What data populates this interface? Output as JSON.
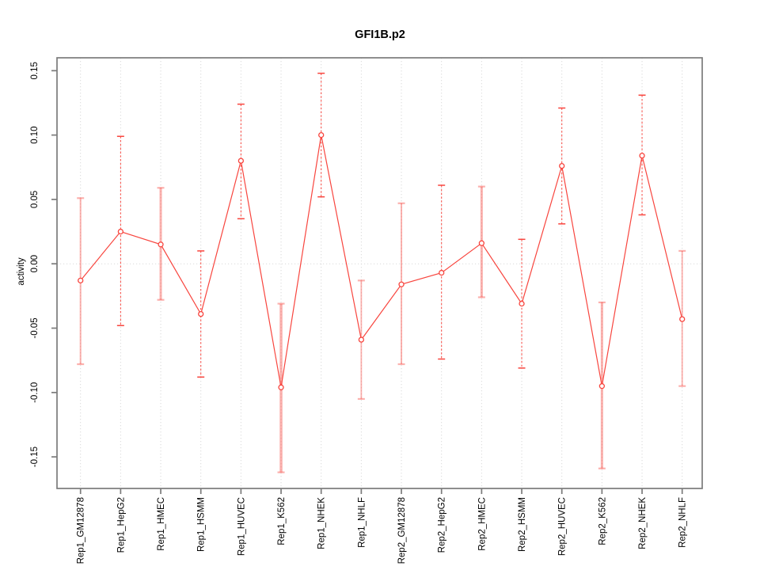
{
  "chart_data": {
    "type": "line",
    "title": "GFI1B.p2",
    "ylabel": "activity",
    "xlabel": "",
    "legend": "none",
    "grid": "vertical dotted gridline at every category; dotted horizontal line at 0",
    "categories": [
      "Rep1_GM12878",
      "Rep1_HepG2",
      "Rep1_HMEC",
      "Rep1_HSMM",
      "Rep1_HUVEC",
      "Rep1_K562",
      "Rep1_NHEK",
      "Rep1_NHLF",
      "Rep2_GM12878",
      "Rep2_HepG2",
      "Rep2_HMEC",
      "Rep2_HSMM",
      "Rep2_HUVEC",
      "Rep2_K562",
      "Rep2_NHEK",
      "Rep2_NHLF"
    ],
    "series": [
      {
        "name": "activity",
        "values": [
          -0.013,
          0.025,
          0.015,
          -0.039,
          0.08,
          -0.096,
          0.1,
          -0.059,
          -0.016,
          -0.007,
          0.016,
          -0.031,
          0.076,
          -0.095,
          0.084,
          -0.043
        ],
        "upper": [
          0.051,
          0.099,
          0.059,
          0.01,
          0.124,
          -0.031,
          0.148,
          -0.013,
          0.047,
          0.061,
          0.06,
          0.019,
          0.121,
          -0.03,
          0.131,
          0.01
        ],
        "lower": [
          -0.078,
          -0.048,
          -0.028,
          -0.088,
          0.035,
          -0.162,
          0.052,
          -0.105,
          -0.078,
          -0.074,
          -0.026,
          -0.081,
          0.031,
          -0.159,
          0.038,
          -0.095
        ]
      }
    ],
    "error_bar_styles": [
      "solid",
      "dashed",
      "solid",
      "dashed",
      "dashed",
      "solid",
      "dashed",
      "solid",
      "solid",
      "dashed",
      "solid",
      "dashed",
      "dashed",
      "solid",
      "dashed",
      "solid"
    ],
    "error_bar_widths": [
      2,
      1,
      3,
      1,
      1,
      3.5,
      1,
      1.8,
      2,
      1,
      3,
      1,
      1,
      3,
      1,
      1.8
    ],
    "yticks": [
      0.15,
      0.1,
      0.05,
      0.0,
      -0.05,
      -0.1,
      -0.15
    ],
    "ytick_labels": [
      "0.15",
      "0.10",
      "0.05",
      "0.00",
      "-0.05",
      "-0.10",
      "-0.15"
    ],
    "ylim": [
      -0.175,
      0.16
    ],
    "zero_line": 0.0,
    "marker": "open-circle",
    "colors": {
      "line": "#f8453e",
      "marker": "#f8453e",
      "error_bar_solid": "rgba(248,69,62,0.42)",
      "error_bar_dashed": "#f8453e",
      "grid": "#d9d9d9",
      "axis": "#7b7b7b",
      "text": "#000000",
      "background": "#ffffff"
    }
  }
}
